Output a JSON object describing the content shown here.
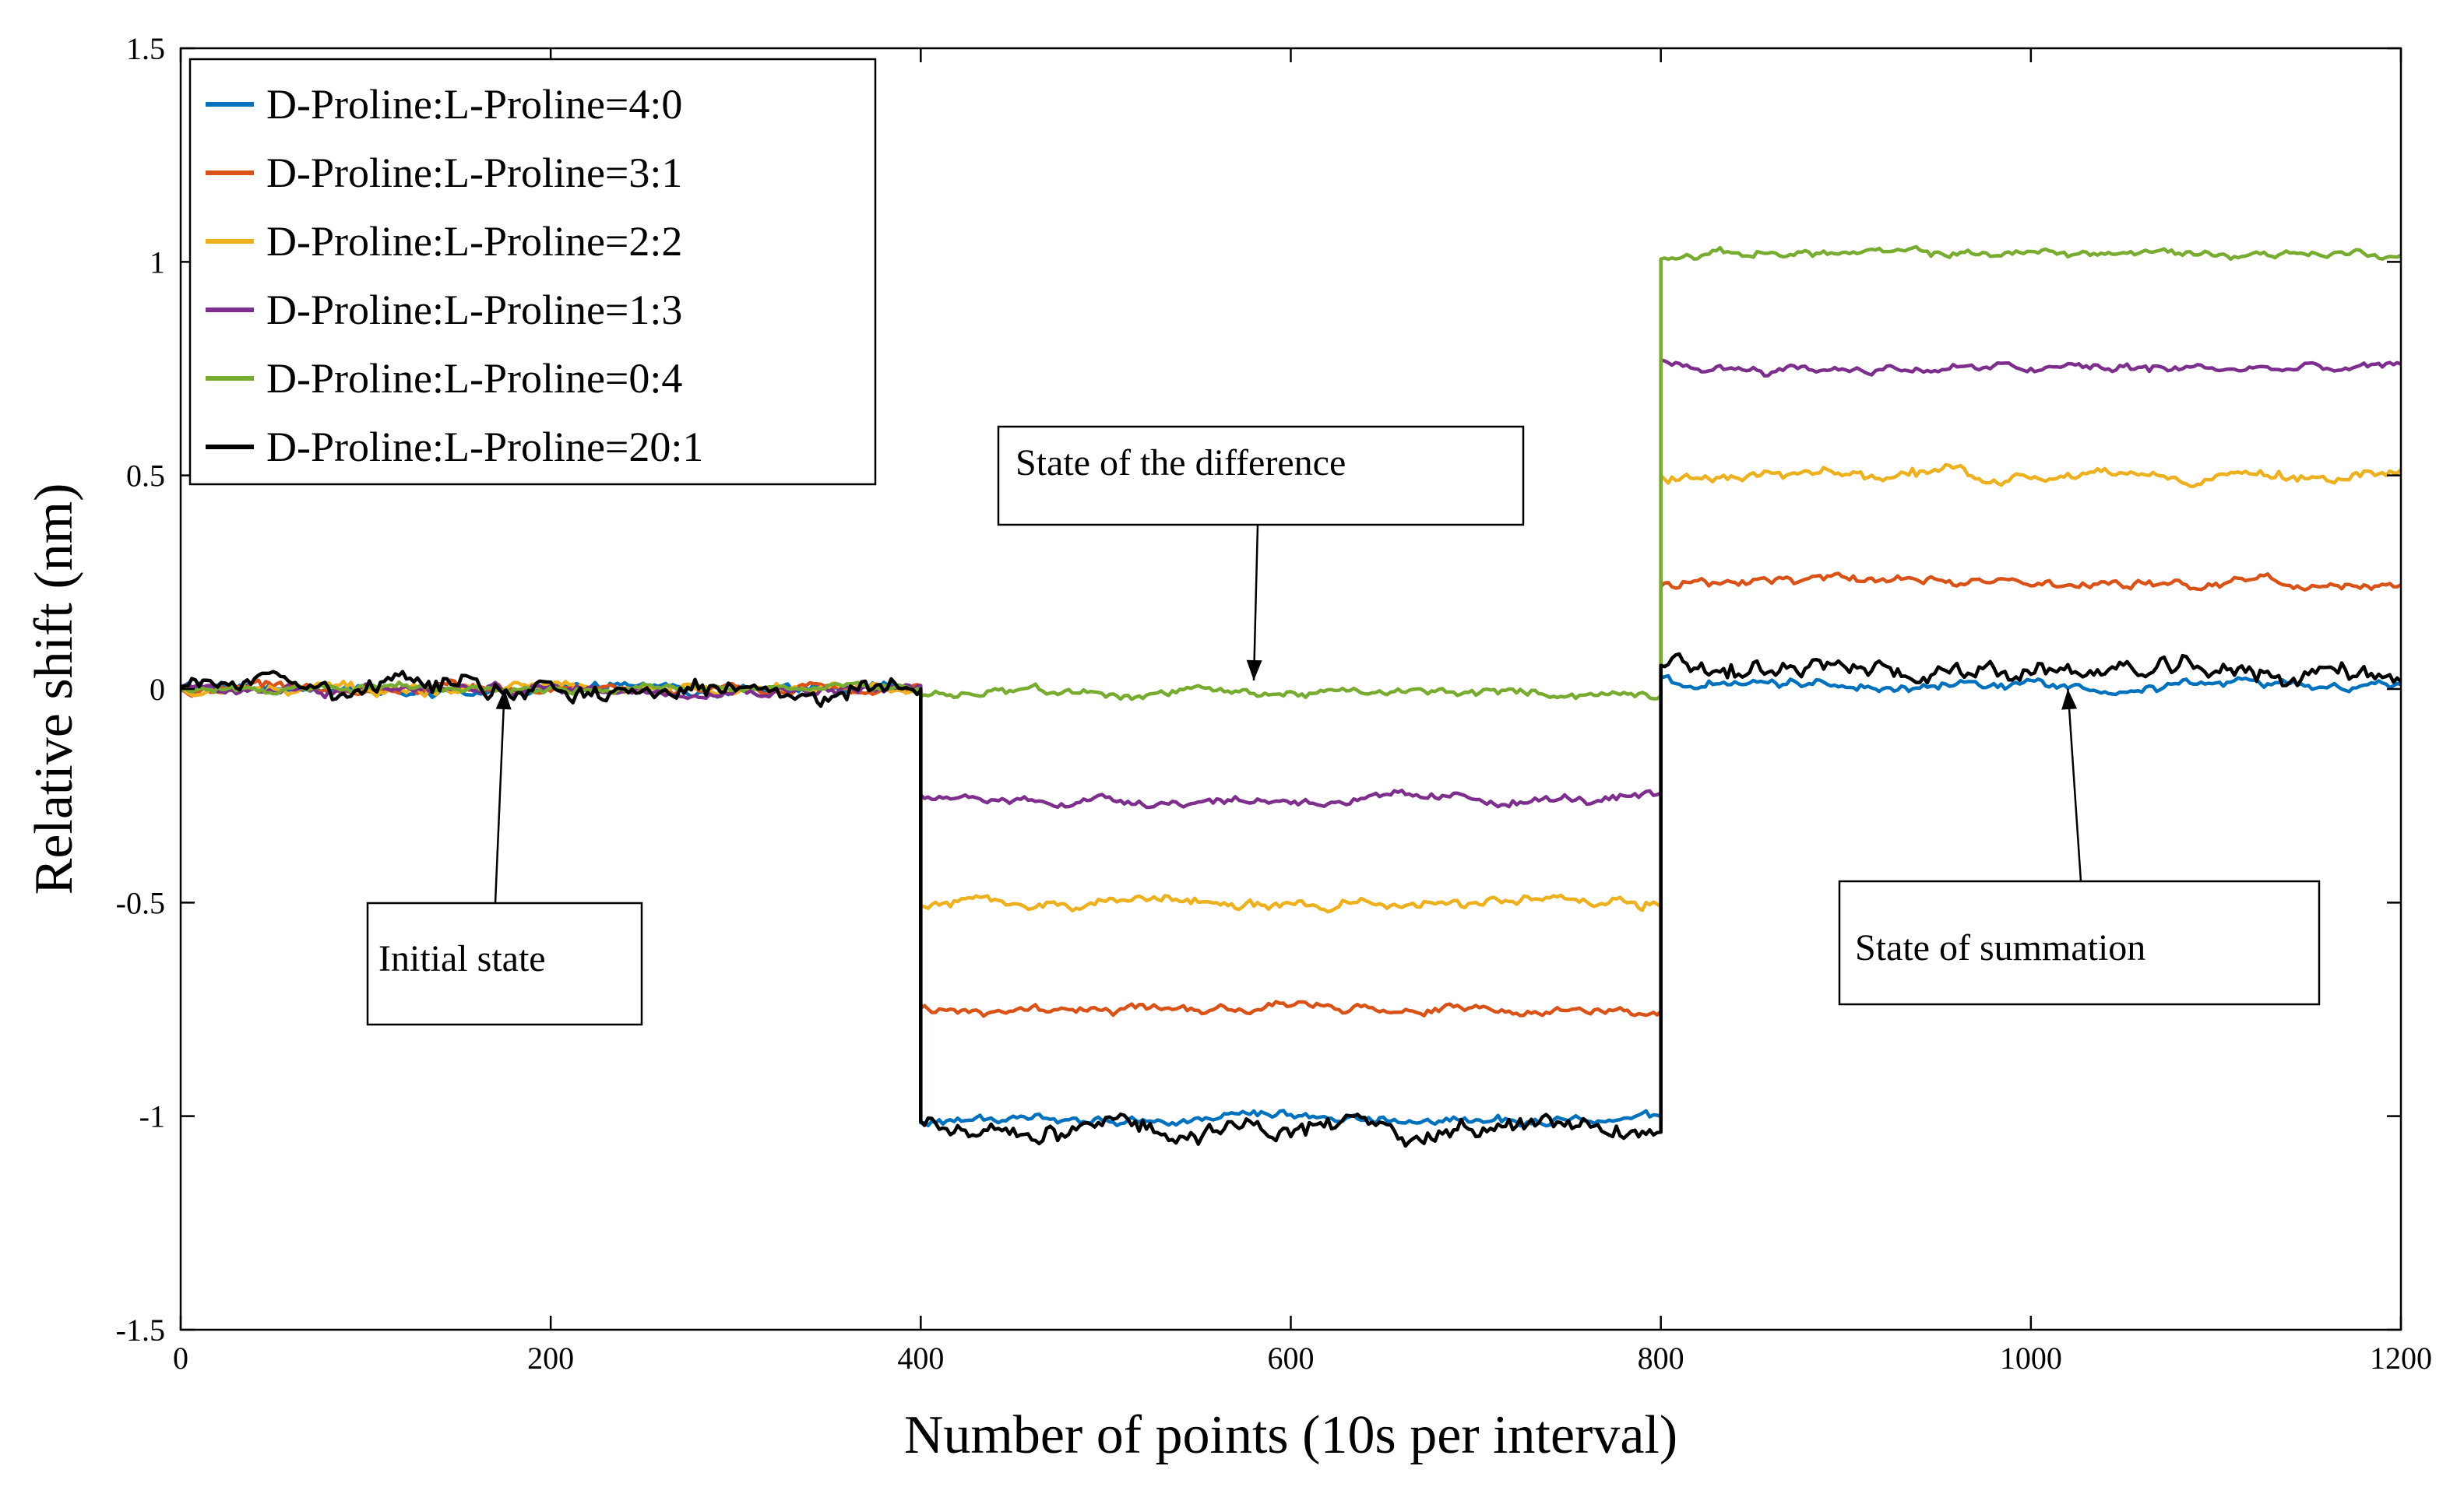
{
  "chart_data": {
    "type": "line",
    "title": "",
    "xlabel": "Number of points (10s per interval)",
    "ylabel": "Relative shift (nm)",
    "xlim": [
      0,
      1200
    ],
    "ylim": [
      -1.5,
      1.5
    ],
    "xticks": [
      0,
      200,
      400,
      600,
      800,
      1000,
      1200
    ],
    "xtick_labels": [
      "0",
      "200",
      "400",
      "600",
      "800",
      "1000",
      "1200"
    ],
    "yticks": [
      1.5,
      1,
      0.5,
      0,
      -0.5,
      -1,
      -1.5
    ],
    "ytick_labels": [
      "1.5",
      "1",
      "0.5",
      "0",
      "-0.5",
      "-1",
      "-1.5"
    ],
    "legend_position": "top-left",
    "series": [
      {
        "name": "D-Proline:L-Proline=4:0",
        "color": "#0072BD",
        "levels": [
          0,
          -1.01,
          0.01
        ],
        "noise": 0.006
      },
      {
        "name": "D-Proline:L-Proline=3:1",
        "color": "#D95319",
        "levels": [
          0,
          -0.75,
          0.25
        ],
        "noise": 0.006
      },
      {
        "name": "D-Proline:L-Proline=2:2",
        "color": "#EDB120",
        "levels": [
          0,
          -0.5,
          0.5
        ],
        "noise": 0.007
      },
      {
        "name": "D-Proline:L-Proline=1:3",
        "color": "#7E2F8E",
        "levels": [
          0,
          -0.26,
          0.75
        ],
        "noise": 0.006
      },
      {
        "name": "D-Proline:L-Proline=0:4",
        "color": "#77AC30",
        "levels": [
          0,
          -0.01,
          1.02
        ],
        "noise": 0.005
      },
      {
        "name": "D-Proline:L-Proline=20:1",
        "color": "#000000",
        "levels": [
          0,
          -1.03,
          0.04
        ],
        "noise": 0.013
      }
    ],
    "segments_x": [
      [
        0,
        400
      ],
      [
        400,
        800
      ],
      [
        800,
        1200
      ]
    ],
    "annotations": [
      {
        "text": "Initial state",
        "target": [
          175,
          0
        ]
      },
      {
        "text": "State of the difference",
        "target": [
          580,
          0.02
        ]
      },
      {
        "text": "State of summation",
        "target": [
          1020,
          0
        ]
      }
    ]
  }
}
